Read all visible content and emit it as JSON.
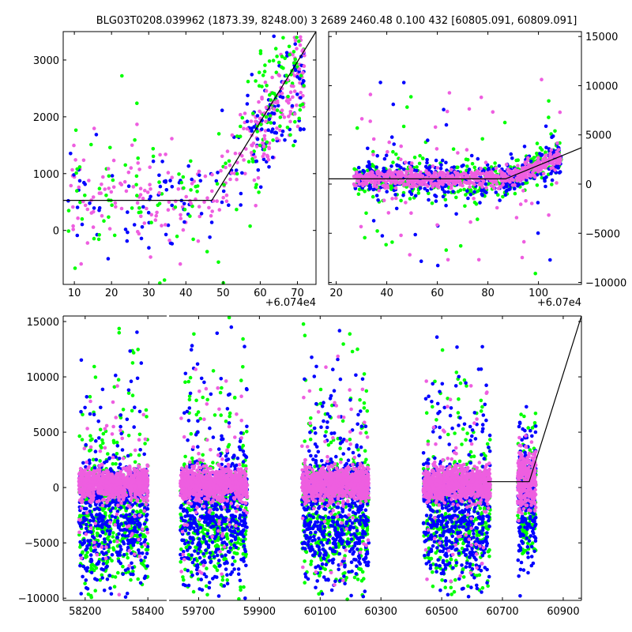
{
  "chart_data": {
    "type": "scatter",
    "title": "BLG03T0208.039962 (1873.39, 8248.00)    3 2689 2460.48 0.100 432 [60805.091, 60809.091]",
    "colors": {
      "series_a": "#0000ff",
      "series_b": "#00ff00",
      "series_c": "#ee5ee0",
      "model": "#000000"
    },
    "series": [
      {
        "name": "blue",
        "color": "#0000ff"
      },
      {
        "name": "green",
        "color": "#00ff00"
      },
      {
        "name": "pink",
        "color": "#ee5ee0"
      }
    ],
    "panels": [
      {
        "id": "top-left",
        "xlim": [
          7,
          75
        ],
        "ylim": [
          -950,
          3500
        ],
        "xticks": [
          10,
          20,
          30,
          40,
          50,
          60,
          70
        ],
        "yticks": [
          0,
          1000,
          2000,
          3000
        ],
        "offset_label": "+6.074e4",
        "model": [
          [
            7,
            530
          ],
          [
            47,
            530
          ],
          [
            75,
            3500
          ]
        ]
      },
      {
        "id": "top-right",
        "xlim": [
          17,
          117
        ],
        "ylim": [
          -10200,
          15500
        ],
        "xticks": [
          20,
          40,
          60,
          80,
          100
        ],
        "yticks": [
          -10000,
          -5000,
          0,
          5000,
          10000,
          15000
        ],
        "offset_label": "+6.07e4",
        "model": [
          [
            17,
            530
          ],
          [
            87,
            530
          ],
          [
            117,
            3700
          ]
        ]
      },
      {
        "id": "bottom",
        "segments": [
          {
            "xlim": [
              58130,
              58460
            ],
            "xticks": [
              58200,
              58400
            ]
          },
          {
            "xlim": [
              59600,
              60960
            ],
            "xticks": [
              59700,
              59900,
              60100,
              60300,
              60500,
              60700,
              60900
            ]
          }
        ],
        "ylim": [
          -10200,
          15500
        ],
        "yticks": [
          -10000,
          -5000,
          0,
          5000,
          10000,
          15000
        ],
        "seasons": [
          [
            58180,
            58400
          ],
          [
            59640,
            59860
          ],
          [
            60040,
            60260
          ],
          [
            60440,
            60660
          ],
          [
            60750,
            60810
          ]
        ],
        "model": [
          [
            60650,
            530
          ],
          [
            60788,
            530
          ],
          [
            60960,
            15500
          ]
        ]
      }
    ],
    "ytick_labels_top_left": [
      "0",
      "1000",
      "2000",
      "3000"
    ],
    "xtick_labels_top_left": [
      "10",
      "20",
      "30",
      "40",
      "50",
      "60",
      "70"
    ],
    "ytick_labels_top_right": [
      "−10000",
      "−5000",
      "0",
      "5000",
      "10000",
      "15000"
    ],
    "xtick_labels_top_right": [
      "20",
      "40",
      "60",
      "80",
      "100"
    ],
    "ytick_labels_bottom": [
      "−10000",
      "−5000",
      "0",
      "5000",
      "10000",
      "15000"
    ],
    "xtick_labels_bottom": [
      "58200",
      "58400",
      "59700",
      "59900",
      "60100",
      "60300",
      "60500",
      "60700",
      "60900"
    ]
  }
}
